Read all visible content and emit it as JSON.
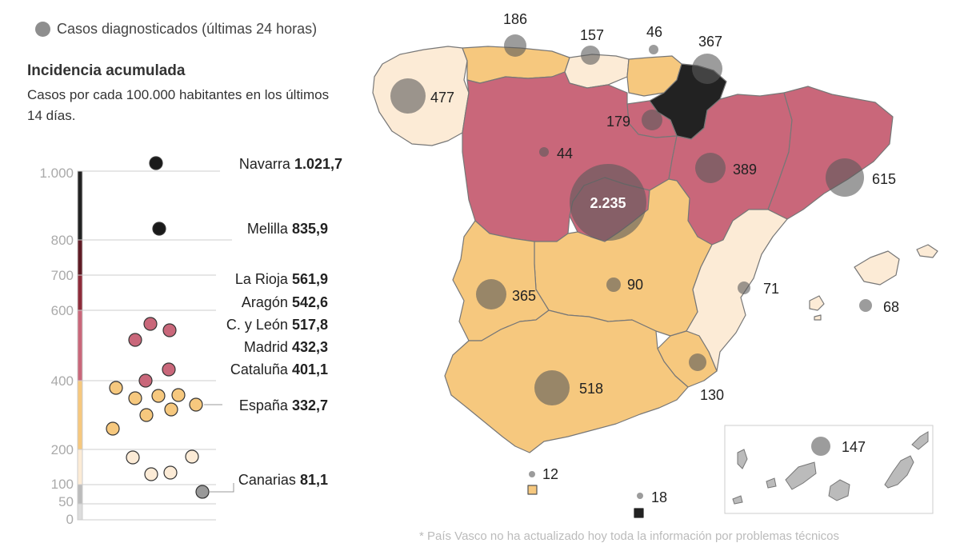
{
  "legend": {
    "bubble_label": "Casos diagnosticados (últimas 24 horas)",
    "bubble_color": "#8e8e8e"
  },
  "title": "Incidencia acumulada",
  "subtitle": "Casos por cada 100.000 habitantes en los últimos 14 días.",
  "scale": {
    "ticks": [
      "1.000",
      "800",
      "700",
      "600",
      "400",
      "200",
      "100",
      "50",
      "0"
    ],
    "bands": [
      {
        "from": 800,
        "to": 1000,
        "color": "#222222"
      },
      {
        "from": 700,
        "to": 800,
        "color": "#5e1a24"
      },
      {
        "from": 600,
        "to": 700,
        "color": "#8e2b3a"
      },
      {
        "from": 400,
        "to": 600,
        "color": "#c9677a"
      },
      {
        "from": 200,
        "to": 400,
        "color": "#f6c87e"
      },
      {
        "from": 100,
        "to": 200,
        "color": "#fcebd6"
      },
      {
        "from": 50,
        "to": 100,
        "color": "#bbbbbb"
      },
      {
        "from": 0,
        "to": 50,
        "color": "#dddddd"
      }
    ]
  },
  "labeled_regions": [
    {
      "name": "Navarra",
      "value": "1.021,7"
    },
    {
      "name": "Melilla",
      "value": "835,9"
    },
    {
      "name": "La Rioja",
      "value": "561,9"
    },
    {
      "name": "Aragón",
      "value": "542,6"
    },
    {
      "name": "C. y León",
      "value": "517,8"
    },
    {
      "name": "Madrid",
      "value": "432,3"
    },
    {
      "name": "Cataluña",
      "value": "401,1"
    },
    {
      "name": "España",
      "value": "332,7"
    },
    {
      "name": "Canarias",
      "value": "81,1"
    }
  ],
  "daily_cases": [
    {
      "region": "Galicia",
      "value": "477"
    },
    {
      "region": "Asturias",
      "value": "186"
    },
    {
      "region": "Cantabria",
      "value": "157"
    },
    {
      "region": "País Vasco",
      "value": "46"
    },
    {
      "region": "Navarra",
      "value": "367"
    },
    {
      "region": "La Rioja",
      "value": "179"
    },
    {
      "region": "Castilla y León",
      "value": "44"
    },
    {
      "region": "Aragón",
      "value": "389"
    },
    {
      "region": "Cataluña",
      "value": "615"
    },
    {
      "region": "Madrid",
      "value": "2.235"
    },
    {
      "region": "Castilla-La Mancha",
      "value": "90"
    },
    {
      "region": "Extremadura",
      "value": "365"
    },
    {
      "region": "C. Valenciana",
      "value": "71"
    },
    {
      "region": "Baleares",
      "value": "68"
    },
    {
      "region": "Murcia",
      "value": "130"
    },
    {
      "region": "Andalucía",
      "value": "518"
    },
    {
      "region": "Ceuta",
      "value": "12"
    },
    {
      "region": "Melilla",
      "value": "18"
    },
    {
      "region": "Canarias",
      "value": "147"
    }
  ],
  "region_colors": {
    "Galicia": "#fcebd6",
    "Asturias": "#f6c87e",
    "Cantabria": "#fcebd6",
    "País Vasco": "#f6c87e",
    "Navarra": "#222222",
    "La Rioja": "#c9677a",
    "Castilla y León": "#c9677a",
    "Aragón": "#c9677a",
    "Cataluña": "#c9677a",
    "Madrid": "#c9677a",
    "Castilla-La Mancha": "#f6c87e",
    "Extremadura": "#f6c87e",
    "C. Valenciana": "#fcebd6",
    "Baleares": "#fcebd6",
    "Murcia": "#f6c87e",
    "Andalucía": "#f6c87e",
    "Canarias": "#bbbbbb",
    "Ceuta": "#f6c87e",
    "Melilla": "#222222"
  },
  "footnote": "* País Vasco no ha actualizado hoy toda la información por problemas técnicos"
}
